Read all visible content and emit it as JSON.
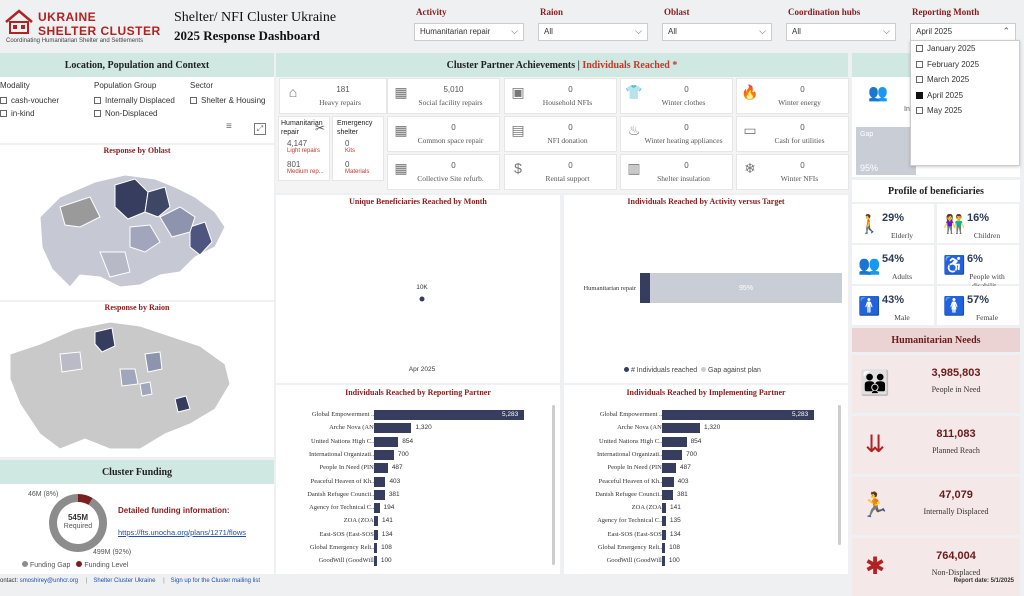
{
  "brand": {
    "title_line1": "UKRAINE",
    "title_line2": "SHELTER CLUSTER",
    "tagline": "Coordinating Humanitarian Shelter and Settlements"
  },
  "header": {
    "title_line1": "Shelter/ NFI Cluster Ukraine",
    "title_line2": "2025 Response Dashboard"
  },
  "filters": [
    {
      "label": "Activity",
      "value": "Humanitarian repair"
    },
    {
      "label": "Raion",
      "value": "All"
    },
    {
      "label": "Oblast",
      "value": "All"
    },
    {
      "label": "Coordination hubs",
      "value": "All"
    },
    {
      "label": "Reporting Month",
      "value": "April 2025"
    }
  ],
  "month_dropdown": {
    "options": [
      "January 2025",
      "February 2025",
      "March 2025",
      "April 2025",
      "May 2025"
    ],
    "checked": [
      false,
      false,
      false,
      true,
      false
    ]
  },
  "location_panel": {
    "title": "Location, Population and Context",
    "modality": {
      "label": "Modality",
      "items": [
        "cash-voucher",
        "in-kind"
      ]
    },
    "population": {
      "label": "Population Group",
      "items": [
        "Internally Displaced",
        "Non-Displaced"
      ]
    },
    "sector": {
      "label": "Sector",
      "items": [
        "Shelter & Housing"
      ]
    },
    "oblast_title": "Response by Oblast",
    "raion_title": "Response by Raion"
  },
  "achievements": {
    "title": "Cluster Partner Achievements |",
    "title_accent": "Individuals Reached *",
    "tiles": [
      {
        "value": "181",
        "name": "Heavy repairs",
        "icon": "house-icon"
      },
      {
        "value": "5,010",
        "name": "Social facility repairs",
        "icon": "building-icon"
      },
      {
        "value": "0",
        "name": "Household NFIs",
        "icon": "nfi-icon"
      },
      {
        "value": "0",
        "name": "Winter clothes",
        "icon": "shirt-icon"
      },
      {
        "value": "0",
        "name": "Winter energy",
        "icon": "fire-icon"
      },
      {
        "value": "0",
        "name": "Common space repair",
        "icon": "building-icon"
      },
      {
        "value": "0",
        "name": "NFI donation",
        "icon": "box-icon"
      },
      {
        "value": "0",
        "name": "Winter heating appliances",
        "icon": "heater-icon"
      },
      {
        "value": "0",
        "name": "Cash for utilities",
        "icon": "cash-icon"
      },
      {
        "value": "0",
        "name": "Collective Site refurb.",
        "icon": "building-icon"
      },
      {
        "value": "0",
        "name": "Rental support",
        "icon": "dollar-icon"
      },
      {
        "value": "0",
        "name": "Shelter insulation",
        "icon": "insulation-icon"
      },
      {
        "value": "0",
        "name": "Winter NFIs",
        "icon": "snowflake-icon"
      }
    ],
    "humanitarian_repair": {
      "label": "Humanitarian repair",
      "light_value": "4,147",
      "light_label": "Light repairs",
      "medium_value": "801",
      "medium_label": "Medium rep..."
    },
    "emergency_shelter": {
      "label": "Emergency shelter",
      "kits_value": "0",
      "kits_label": "Kits",
      "materials_value": "0",
      "materials_label": "Materials"
    }
  },
  "unique_by_month": {
    "title": "Unique Beneficiaries Reached by Month"
  },
  "activity_vs_target": {
    "title": "Individuals Reached by Activity versus Target",
    "legend_reached": "# Individuals reached",
    "legend_gap": "Gap against plan"
  },
  "reporting_partner": {
    "title": "Individuals Reached by Reporting Partner"
  },
  "implementing_partner": {
    "title": "Individuals Reached by Implementing Partner"
  },
  "funding": {
    "title": "Cluster Funding",
    "gap_label": "46M (8%)",
    "level_label": "499M (92%)",
    "center_value": "545M",
    "center_label": "Required",
    "info_title": "Detailed funding information:",
    "link": "https://fts.unocha.org/plans/1271/flows",
    "legend_gap": "Funding Gap",
    "legend_level": "Funding Level"
  },
  "top_right": {
    "gap_label": "Gap",
    "gap_pct": "95%",
    "truncated_label": "In"
  },
  "profile": {
    "title": "Profile of beneficiaries",
    "items": [
      {
        "pct": "29%",
        "label": "Elderly",
        "icon": "elderly-icon"
      },
      {
        "pct": "16%",
        "label": "Children",
        "icon": "children-icon"
      },
      {
        "pct": "54%",
        "label": "Adults",
        "icon": "adults-icon"
      },
      {
        "pct": "6%",
        "label": "People with disabilit...",
        "icon": "wheelchair-icon"
      },
      {
        "pct": "43%",
        "label": "Male",
        "icon": "male-icon"
      },
      {
        "pct": "57%",
        "label": "Female",
        "icon": "female-icon"
      }
    ]
  },
  "needs": {
    "title": "Humanitarian Needs",
    "items": [
      {
        "value": "3,985,803",
        "label": "People in Need",
        "icon": "people-icon"
      },
      {
        "value": "811,083",
        "label": "Planned Reach",
        "icon": "target-people-icon"
      },
      {
        "value": "47,079",
        "label": "Internally Displaced",
        "icon": "displaced-icon"
      },
      {
        "value": "764,004",
        "label": "Non-Displaced",
        "icon": "person-home-icon"
      }
    ]
  },
  "footer": {
    "contact": "ontact: ",
    "email": "smoshirey@unhcr.org",
    "link1": "Shelter Cluster Ukraine",
    "link2": "Sign up for the Cluster mailing list",
    "report_date": "Report date: 5/1/2025"
  },
  "chart_data": [
    {
      "type": "scatter",
      "title": "Unique Beneficiaries Reached by Month",
      "x": [
        "Apr 2025"
      ],
      "series": [
        {
          "values": [
            10000
          ]
        }
      ],
      "data_labels": [
        "10K"
      ]
    },
    {
      "type": "bar",
      "title": "Individuals Reached by Activity versus Target",
      "categories": [
        "Humanitarian repair"
      ],
      "series": [
        {
          "name": "# Individuals reached",
          "values": [
            5
          ]
        },
        {
          "name": "Gap against plan",
          "values": [
            95
          ]
        }
      ],
      "data_labels": [
        "95%"
      ],
      "unit": "%"
    },
    {
      "type": "bar",
      "title": "Individuals Reached by Reporting Partner",
      "categories": [
        "Global Empowerment ...",
        "Arche Nova (AN)",
        "United Nations High C...",
        "International Organizati...",
        "People In Need (PIN)",
        "Peaceful Heaven of Kh...",
        "Danish Refugee Councii...",
        "Agency for Technical C...",
        "ZOA (ZOA)",
        "East-SOS (East-SOS)",
        "Global Emergency Reli...",
        "GoodWill (GoodWill)"
      ],
      "values": [
        5283,
        1320,
        854,
        700,
        487,
        403,
        381,
        194,
        141,
        134,
        108,
        100
      ],
      "data_labels": [
        "5,283",
        "1,320",
        "854",
        "700",
        "487",
        "403",
        "381",
        "194",
        "141",
        "134",
        "108",
        "100"
      ]
    },
    {
      "type": "bar",
      "title": "Individuals Reached by Implementing Partner",
      "categories": [
        "Global Empowerment ...",
        "Arche Nova (AN)",
        "United Nations High C...",
        "International Organizati...",
        "People In Need (PIN)",
        "Peaceful Heaven of Kh...",
        "Danish Refugee Councii...",
        "ZOA (ZOA)",
        "Agency for Technical C...",
        "East-SOS (East-SOS)",
        "Global Emergency Reli...",
        "GoodWill (GoodWill)"
      ],
      "values": [
        5283,
        1320,
        854,
        700,
        487,
        403,
        381,
        141,
        135,
        134,
        108,
        100
      ],
      "data_labels": [
        "5,283",
        "1,320",
        "854",
        "700",
        "487",
        "403",
        "381",
        "141",
        "135",
        "134",
        "108",
        "100"
      ]
    },
    {
      "type": "pie",
      "title": "Cluster Funding",
      "categories": [
        "Funding Gap",
        "Funding Level"
      ],
      "values": [
        46,
        499
      ],
      "data_labels": [
        "46M (8%)",
        "499M (92%)"
      ],
      "colors": [
        "#7a1f1f",
        "#8c8c8c"
      ]
    }
  ],
  "colors": {
    "teal": "#cfe8e2",
    "navy": "#363d5e",
    "maroon": "#8b1a1a",
    "gap": "#c8cdd6",
    "need_bg": "#f5e8e8"
  }
}
